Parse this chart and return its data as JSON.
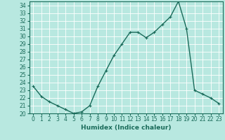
{
  "x": [
    0,
    1,
    2,
    3,
    4,
    5,
    6,
    7,
    8,
    9,
    10,
    11,
    12,
    13,
    14,
    15,
    16,
    17,
    18,
    19,
    20,
    21,
    22,
    23
  ],
  "y": [
    23.5,
    22.2,
    21.5,
    21.0,
    20.5,
    20.0,
    20.2,
    21.0,
    23.5,
    25.5,
    27.5,
    29.0,
    30.5,
    30.5,
    29.8,
    30.5,
    31.5,
    32.5,
    34.5,
    31.0,
    23.0,
    22.5,
    22.0,
    21.3
  ],
  "line_color": "#1a6b5a",
  "marker": "+",
  "marker_size": 3,
  "bg_color": "#b8e8e0",
  "grid_color": "#ffffff",
  "xlabel": "Humidex (Indice chaleur)",
  "ylim": [
    20,
    34.5
  ],
  "xlim": [
    -0.5,
    23.5
  ],
  "yticks": [
    20,
    21,
    22,
    23,
    24,
    25,
    26,
    27,
    28,
    29,
    30,
    31,
    32,
    33,
    34
  ],
  "xticks": [
    0,
    1,
    2,
    3,
    4,
    5,
    6,
    7,
    8,
    9,
    10,
    11,
    12,
    13,
    14,
    15,
    16,
    17,
    18,
    19,
    20,
    21,
    22,
    23
  ],
  "tick_label_color": "#1a6b5a",
  "tick_label_size": 5.5,
  "xlabel_size": 6.5,
  "xlabel_color": "#1a6b5a",
  "line_width": 1.0,
  "markeredgewidth": 0.8
}
